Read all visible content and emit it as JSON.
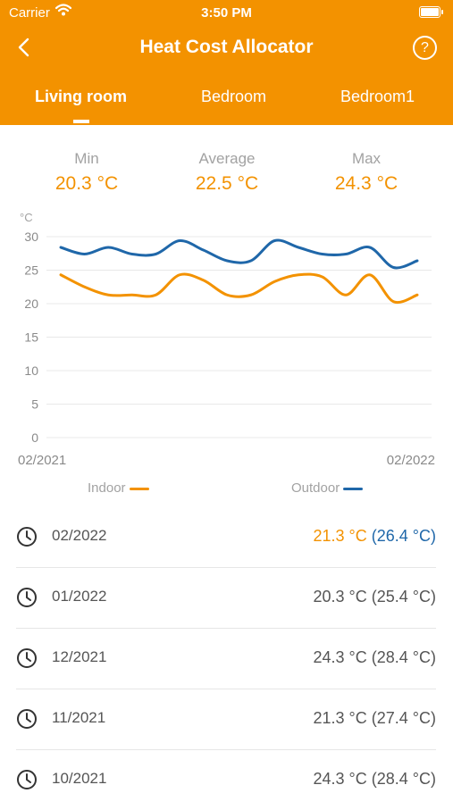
{
  "status_bar": {
    "carrier": "Carrier",
    "time": "3:50 PM"
  },
  "header": {
    "title": "Heat Cost Allocator",
    "help_label": "?"
  },
  "tabs": [
    {
      "label": "Living room",
      "active": true
    },
    {
      "label": "Bedroom",
      "active": false
    },
    {
      "label": "Bedroom1",
      "active": false
    }
  ],
  "stats": {
    "min": {
      "label": "Min",
      "value": "20.3 °C"
    },
    "average": {
      "label": "Average",
      "value": "22.5 °C"
    },
    "max": {
      "label": "Max",
      "value": "24.3 °C"
    }
  },
  "chart_data": {
    "type": "line",
    "unit_label": "°C",
    "x_start_label": "02/2021",
    "x_end_label": "02/2022",
    "yticks": [
      0,
      5,
      10,
      15,
      20,
      25,
      30
    ],
    "ylim": [
      0,
      30
    ],
    "grid": true,
    "series": [
      {
        "name": "Indoor",
        "color": "#f39200",
        "values": [
          24.3,
          22.5,
          21.3,
          21.3,
          21.3,
          24.3,
          23.5,
          21.3,
          21.3,
          23.3,
          24.3,
          24.0,
          21.3,
          24.3,
          20.3,
          21.3
        ]
      },
      {
        "name": "Outdoor",
        "color": "#1f67a9",
        "values": [
          28.4,
          27.4,
          28.4,
          27.4,
          27.4,
          29.4,
          28.0,
          26.4,
          26.4,
          29.4,
          28.4,
          27.4,
          27.4,
          28.4,
          25.4,
          26.4
        ]
      }
    ]
  },
  "legend": {
    "indoor": "Indoor",
    "outdoor": "Outdoor"
  },
  "history": [
    {
      "date": "02/2022",
      "indoor": "21.3 °C",
      "outdoor": "(26.4 °C)",
      "highlight": true
    },
    {
      "date": "01/2022",
      "indoor": "20.3 °C",
      "outdoor": "(25.4 °C)",
      "highlight": false
    },
    {
      "date": "12/2021",
      "indoor": "24.3 °C",
      "outdoor": "(28.4 °C)",
      "highlight": false
    },
    {
      "date": "11/2021",
      "indoor": "21.3 °C",
      "outdoor": "(27.4 °C)",
      "highlight": false
    },
    {
      "date": "10/2021",
      "indoor": "24.3 °C",
      "outdoor": "(28.4 °C)",
      "highlight": false
    }
  ],
  "colors": {
    "accent": "#f39200",
    "outdoor": "#1f67a9"
  }
}
